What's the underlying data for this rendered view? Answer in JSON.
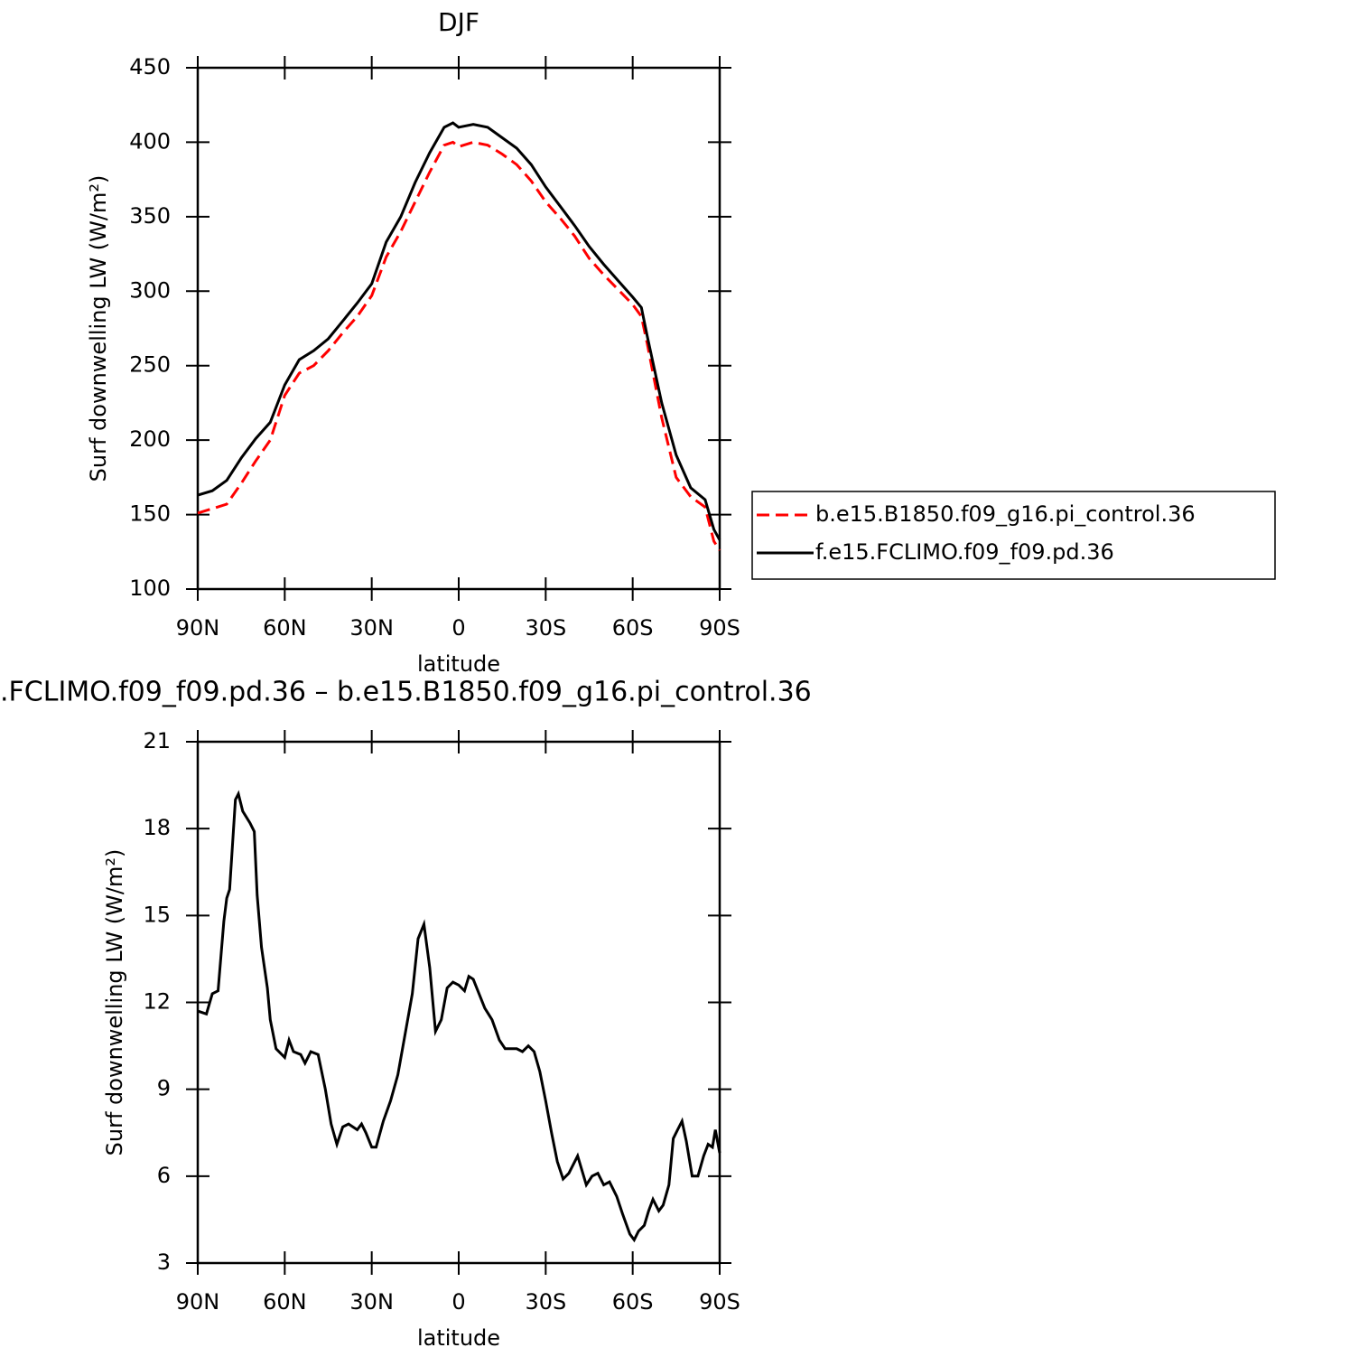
{
  "chart_data": [
    {
      "type": "line",
      "title": "DJF",
      "xlabel": "latitude",
      "ylabel": "Surf downwelling LW (W/m²)",
      "x": [
        90,
        85,
        80,
        75,
        70,
        65,
        60,
        55,
        50,
        45,
        40,
        35,
        30,
        25,
        20,
        15,
        10,
        5,
        2,
        0,
        -5,
        -10,
        -15,
        -20,
        -25,
        -30,
        -35,
        -40,
        -45,
        -50,
        -55,
        -60,
        -63,
        -65,
        -70,
        -75,
        -80,
        -85,
        -88,
        -90
      ],
      "series": [
        {
          "name": "b.e15.B1850.f09_g16.pi_control.36",
          "color": "#ff0000",
          "line_style": "dashed",
          "values": [
            151,
            154,
            157,
            171,
            186,
            200,
            230,
            245,
            250,
            260,
            272,
            283,
            297,
            323,
            340,
            360,
            380,
            398,
            400,
            397,
            400,
            398,
            392,
            385,
            374,
            360,
            349,
            337,
            322,
            311,
            301,
            291,
            283,
            265,
            215,
            175,
            162,
            155,
            132,
            126
          ]
        },
        {
          "name": "f.e15.FCLIMO.f09_f09.pd.36",
          "color": "#000000",
          "line_style": "solid",
          "values": [
            163,
            166,
            173,
            188,
            201,
            212,
            237,
            254,
            260,
            268,
            280,
            292,
            305,
            333,
            350,
            373,
            393,
            410,
            413,
            410,
            412,
            410,
            403,
            396,
            385,
            370,
            357,
            344,
            330,
            318,
            307,
            296,
            289,
            270,
            225,
            190,
            168,
            160,
            140,
            133
          ]
        }
      ],
      "xlim": [
        90,
        -90
      ],
      "xticks": [
        {
          "value": 90,
          "label": "90N"
        },
        {
          "value": 60,
          "label": "60N"
        },
        {
          "value": 30,
          "label": "30N"
        },
        0,
        {
          "value": -30,
          "label": "30S"
        },
        {
          "value": -60,
          "label": "60S"
        },
        {
          "value": -90,
          "label": "90S"
        }
      ],
      "ylim": [
        100,
        450
      ],
      "yticks": [
        100,
        150,
        200,
        250,
        300,
        350,
        400,
        450
      ],
      "legend": "right"
    },
    {
      "type": "line",
      "title": ".FCLIMO.f09_f09.pd.36 – b.e15.B1850.f09_g16.pi_control.36",
      "xlabel": "latitude",
      "ylabel": "Surf downwelling LW (W/m²)",
      "x": [
        90,
        87,
        85,
        83,
        81,
        80,
        79,
        77,
        76,
        74.5,
        72,
        70.5,
        69.5,
        68,
        66,
        65,
        63,
        60,
        58.5,
        57,
        54.5,
        53,
        51,
        48.5,
        46,
        44,
        42,
        40,
        38,
        35,
        33.5,
        32,
        30,
        28.5,
        26,
        23.5,
        21,
        18.5,
        16,
        14,
        12,
        10,
        8,
        6,
        4,
        2,
        0,
        -2,
        -3.5,
        -5,
        -7,
        -9,
        -11.5,
        -14,
        -16,
        -18,
        -20,
        -22,
        -24,
        -26,
        -28,
        -30,
        -32,
        -34,
        -36,
        -38,
        -41,
        -44,
        -46,
        -48,
        -50,
        -52,
        -54.5,
        -56.5,
        -59,
        -60.5,
        -62,
        -64,
        -65.5,
        -67,
        -69,
        -70.5,
        -72.5,
        -74,
        -75.5,
        -77,
        -78.5,
        -80.5,
        -82.5,
        -84.5,
        -86,
        -87.5,
        -88.5,
        -90
      ],
      "series": [
        {
          "color": "#000000",
          "line_style": "solid",
          "values": [
            11.7,
            11.6,
            12.3,
            12.4,
            14.8,
            15.6,
            15.9,
            19.0,
            19.2,
            18.6,
            18.2,
            17.9,
            15.7,
            13.9,
            12.5,
            11.4,
            10.4,
            10.1,
            10.7,
            10.3,
            10.2,
            9.9,
            10.3,
            10.2,
            9.0,
            7.8,
            7.1,
            7.7,
            7.8,
            7.6,
            7.8,
            7.5,
            7.0,
            7.0,
            7.9,
            8.6,
            9.5,
            10.9,
            12.3,
            14.2,
            14.7,
            13.2,
            11.0,
            11.4,
            12.5,
            12.7,
            12.6,
            12.4,
            12.9,
            12.8,
            12.3,
            11.8,
            11.4,
            10.7,
            10.4,
            10.4,
            10.4,
            10.3,
            10.5,
            10.3,
            9.6,
            8.6,
            7.5,
            6.5,
            5.9,
            6.1,
            6.7,
            5.7,
            6.0,
            6.1,
            5.7,
            5.8,
            5.3,
            4.7,
            4.0,
            3.8,
            4.1,
            4.3,
            4.8,
            5.2,
            4.8,
            5.0,
            5.7,
            7.3,
            7.6,
            7.9,
            7.2,
            6.0,
            6.0,
            6.7,
            7.1,
            7.0,
            7.6,
            6.8
          ]
        }
      ],
      "xlim": [
        90,
        -90
      ],
      "xticks": [
        {
          "value": 90,
          "label": "90N"
        },
        {
          "value": 60,
          "label": "60N"
        },
        {
          "value": 30,
          "label": "30N"
        },
        0,
        {
          "value": -30,
          "label": "30S"
        },
        {
          "value": -60,
          "label": "60S"
        },
        {
          "value": -90,
          "label": "90S"
        }
      ],
      "ylim": [
        3,
        21
      ],
      "yticks": [
        3,
        6,
        9,
        12,
        15,
        18,
        21
      ]
    }
  ]
}
